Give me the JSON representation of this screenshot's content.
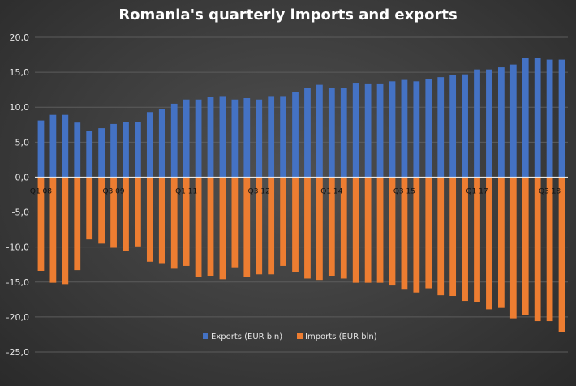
{
  "chart_data": {
    "type": "bar",
    "title": "Romania's quarterly imports and exports",
    "xlabel": "",
    "ylabel": "",
    "ylim": [
      -25,
      20
    ],
    "yticks": [
      "20,0",
      "15,0",
      "10,0",
      "5,0",
      "0,0",
      "-5,0",
      "-10,0",
      "-15,0",
      "-20,0",
      "-25,0"
    ],
    "grid": true,
    "legend_position": "bottom",
    "categories": [
      "Q1 08",
      "Q2 08",
      "Q3 08",
      "Q4 08",
      "Q1 09",
      "Q2 09",
      "Q3 09",
      "Q4 09",
      "Q1 10",
      "Q2 10",
      "Q3 10",
      "Q4 10",
      "Q1 11",
      "Q2 11",
      "Q3 11",
      "Q4 11",
      "Q1 12",
      "Q2 12",
      "Q3 12",
      "Q4 12",
      "Q1 13",
      "Q2 13",
      "Q3 13",
      "Q4 13",
      "Q1 14",
      "Q2 14",
      "Q3 14",
      "Q4 14",
      "Q1 15",
      "Q2 15",
      "Q3 15",
      "Q4 15",
      "Q1 16",
      "Q2 16",
      "Q3 16",
      "Q4 16",
      "Q1 17",
      "Q2 17",
      "Q3 17",
      "Q4 17",
      "Q1 18",
      "Q2 18",
      "Q3 18",
      "Q4 18"
    ],
    "xtick_labels": [
      "Q1 08",
      "",
      "",
      "",
      "",
      "",
      "Q3 09",
      "",
      "",
      "",
      "",
      "",
      "Q1 11",
      "",
      "",
      "",
      "",
      "",
      "Q3 12",
      "",
      "",
      "",
      "",
      "",
      "Q1 14",
      "",
      "",
      "",
      "",
      "",
      "Q3 15",
      "",
      "",
      "",
      "",
      "",
      "Q1 17",
      "",
      "",
      "",
      "",
      "",
      "Q3 18",
      ""
    ],
    "series": [
      {
        "name": "Exports (EUR bln)",
        "color": "#4472c4",
        "values": [
          8.1,
          8.9,
          8.9,
          7.8,
          6.6,
          7.0,
          7.6,
          7.9,
          7.9,
          9.3,
          9.7,
          10.5,
          11.1,
          11.1,
          11.5,
          11.6,
          11.1,
          11.3,
          11.1,
          11.6,
          11.6,
          12.2,
          12.7,
          13.2,
          12.8,
          12.8,
          13.5,
          13.4,
          13.4,
          13.7,
          13.9,
          13.7,
          14.0,
          14.3,
          14.6,
          14.7,
          15.4,
          15.4,
          15.7,
          16.1,
          17.0,
          17.0,
          16.8,
          16.8
        ]
      },
      {
        "name": "Imports (EUR bln)",
        "color": "#ed7d31",
        "values": [
          -13.4,
          -15.1,
          -15.3,
          -13.3,
          -8.9,
          -9.5,
          -10.1,
          -10.6,
          -9.9,
          -12.1,
          -12.3,
          -13.1,
          -12.7,
          -14.3,
          -14.1,
          -14.6,
          -12.9,
          -14.3,
          -13.9,
          -13.9,
          -12.7,
          -13.6,
          -14.5,
          -14.7,
          -14.1,
          -14.5,
          -15.1,
          -15.1,
          -15.1,
          -15.5,
          -16.1,
          -16.5,
          -15.9,
          -16.9,
          -17.0,
          -17.7,
          -17.9,
          -18.9,
          -18.7,
          -20.2,
          -19.7,
          -20.6,
          -20.6,
          -22.2
        ]
      }
    ]
  }
}
